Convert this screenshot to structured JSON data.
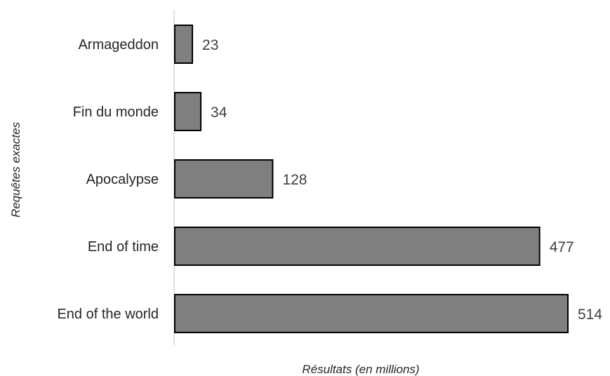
{
  "chart_data": {
    "type": "bar",
    "orientation": "horizontal",
    "categories": [
      "Armageddon",
      "Fin du monde",
      "Apocalypse",
      "End of time",
      "End of the world"
    ],
    "values": [
      23,
      34,
      128,
      477,
      514
    ],
    "xlabel": "Résultats (en millions)",
    "ylabel": "Requêtes exactes",
    "xlim": [
      0,
      514
    ],
    "grid": false,
    "legend": "none",
    "data_labels": true
  },
  "colors": {
    "bar_fill": "#7f7f7f",
    "bar_stroke": "#000000",
    "axis_line": "#d9d9d9",
    "text": "#262626"
  }
}
